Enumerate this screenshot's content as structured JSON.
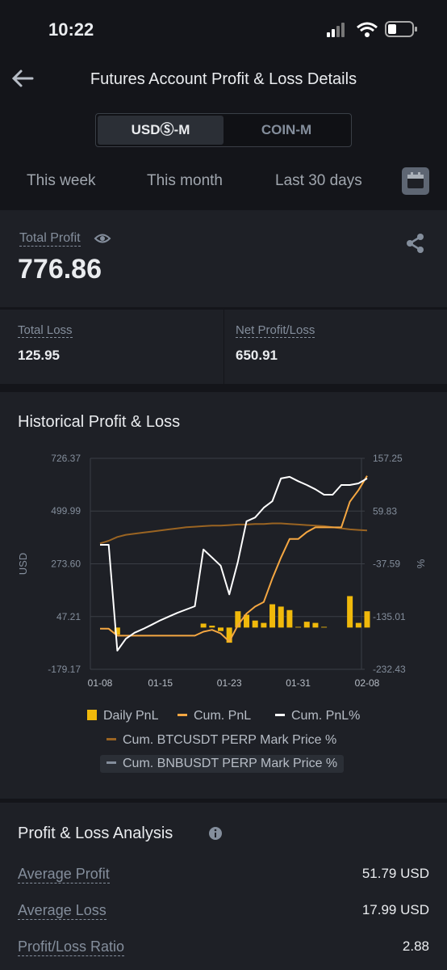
{
  "status_bar": {
    "time": "10:22"
  },
  "header": {
    "title": "Futures Account Profit & Loss Details"
  },
  "tabs": [
    "USDⓈ-M",
    "COIN-M"
  ],
  "periods": [
    "This week",
    "This month",
    "Last 30 days"
  ],
  "summary": {
    "total_profit": {
      "label": "Total Profit",
      "value": "776.86"
    },
    "total_loss": {
      "label": "Total Loss",
      "value": "125.95"
    },
    "net_profit_loss": {
      "label": "Net Profit/Loss",
      "value": "650.91"
    }
  },
  "chart_data": {
    "type": "combo",
    "title": "Historical Profit & Loss",
    "y_label": "USD",
    "y2_label": "%",
    "categories": [
      "01-08",
      null,
      null,
      null,
      null,
      null,
      null,
      "01-15",
      null,
      null,
      null,
      null,
      null,
      null,
      null,
      "01-23",
      null,
      null,
      null,
      null,
      null,
      null,
      null,
      "01-31",
      null,
      null,
      null,
      null,
      null,
      null,
      null,
      "02-08"
    ],
    "ylim": [
      -179.17,
      726.37
    ],
    "yticks": [
      -179.17,
      47.21,
      {
        "value": 273.6,
        "label": "273.60"
      },
      499.99,
      726.37
    ],
    "y2lim": [
      -232.43,
      157.25
    ],
    "y2ticks": [
      -232.43,
      -135.01,
      -37.59,
      59.83,
      157.25
    ],
    "grid": true,
    "series": [
      {
        "name": "Daily PnL",
        "type": "bar",
        "color": "#f0b90b",
        "values": [
          0,
          0,
          -30,
          0,
          0,
          0,
          0,
          0,
          0,
          0,
          0,
          0,
          17,
          8,
          -15,
          -65,
          70,
          55,
          30,
          20,
          100,
          90,
          75,
          3,
          25,
          20,
          3,
          0,
          0,
          135,
          20,
          70
        ]
      },
      {
        "name": "Cum. PnL",
        "type": "line",
        "color": "#f5a742",
        "values": [
          -5,
          -5,
          -35,
          -35,
          -35,
          -35,
          -35,
          -35,
          -35,
          -35,
          -35,
          -35,
          -18,
          -10,
          -25,
          -60,
          10,
          60,
          90,
          110,
          210,
          300,
          380,
          380,
          410,
          430,
          430,
          430,
          430,
          540,
          590,
          651
        ]
      },
      {
        "name": "Cum. PnL%",
        "type": "line",
        "axis": "y2",
        "color": "#ffffff",
        "values": [
          -2.5,
          -2.5,
          -198,
          -176,
          -165,
          -158,
          -150,
          -142,
          -135,
          -128,
          -122,
          -116,
          -11,
          -26,
          -41,
          -94,
          -34,
          41,
          48,
          66,
          78,
          120,
          123,
          115,
          108,
          100,
          90,
          90,
          108,
          108,
          111,
          120
        ]
      },
      {
        "name": "Cum. BTCUSDT PERP Mark Price %",
        "type": "line",
        "axis": "y2",
        "color": "#9a6422",
        "values": [
          0,
          5,
          12,
          16,
          18,
          20,
          22,
          24,
          26,
          28,
          30,
          31,
          32,
          33,
          33,
          34,
          35,
          35,
          36,
          36,
          37,
          37,
          36,
          35,
          34,
          33,
          32,
          30,
          28,
          26,
          25,
          24
        ]
      },
      {
        "name": "Cum. BNBUSDT PERP Mark Price %",
        "type": "line",
        "axis": "y2",
        "color": "#848e9c",
        "values": [
          null,
          null,
          null,
          null,
          null,
          null,
          null,
          null,
          null,
          null,
          null,
          null,
          null,
          null,
          null,
          null,
          null,
          null,
          null,
          null,
          null,
          null,
          null,
          null,
          null,
          null,
          null,
          null,
          null,
          null,
          null,
          null
        ]
      }
    ]
  },
  "analysis": {
    "title": "Profit & Loss Analysis",
    "rows": [
      [
        "Average Profit",
        "51.79 USD"
      ],
      [
        "Average Loss",
        "17.99 USD"
      ],
      [
        "Profit/Loss Ratio",
        "2.88"
      ]
    ]
  }
}
